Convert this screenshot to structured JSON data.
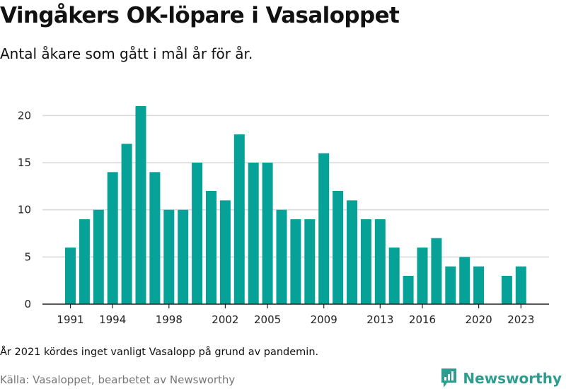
{
  "header": {
    "title": "Vingåkers OK-löpare i Vasaloppet",
    "subtitle": "Antal åkare som gått i mål år för år."
  },
  "footer": {
    "note": "År 2021 kördes inget vanligt Vasalopp på grund av pandemin.",
    "source": "Källa: Vasaloppet, bearbetet av Newsworthy",
    "brand": "Newsworthy"
  },
  "colors": {
    "bar": "#06a297",
    "grid": "#d9d9d9",
    "axis": "#222222",
    "brand": "#2e9c8e"
  },
  "chart_data": {
    "type": "bar",
    "title": "Vingåkers OK-löpare i Vasaloppet",
    "subtitle": "Antal åkare som gått i mål år för år.",
    "xlabel": "",
    "ylabel": "",
    "ylim": [
      0,
      21
    ],
    "yticks": [
      0,
      5,
      10,
      15,
      20
    ],
    "xticks": [
      1991,
      1994,
      1998,
      2002,
      2005,
      2009,
      2013,
      2016,
      2020,
      2023
    ],
    "grid": "horizontal",
    "legend": "none",
    "categories": [
      1991,
      1992,
      1993,
      1994,
      1995,
      1996,
      1997,
      1998,
      1999,
      2000,
      2001,
      2002,
      2003,
      2004,
      2005,
      2006,
      2007,
      2008,
      2009,
      2010,
      2011,
      2012,
      2013,
      2014,
      2015,
      2016,
      2017,
      2018,
      2019,
      2020,
      2021,
      2022,
      2023
    ],
    "values": [
      6,
      9,
      10,
      14,
      17,
      21,
      14,
      10,
      10,
      15,
      12,
      11,
      18,
      15,
      15,
      10,
      9,
      9,
      16,
      12,
      11,
      9,
      9,
      6,
      3,
      6,
      7,
      4,
      5,
      4,
      0,
      3,
      4
    ]
  }
}
